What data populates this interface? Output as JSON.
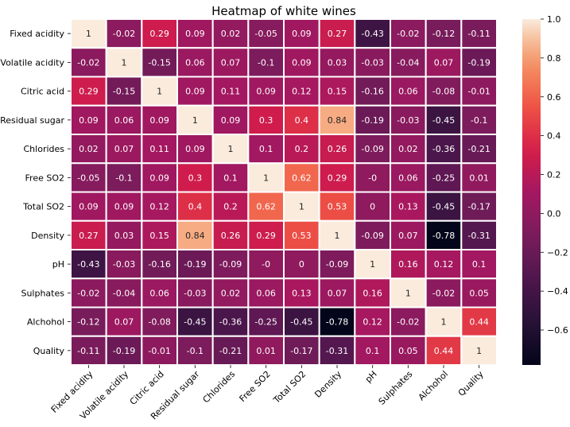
{
  "chart_data": {
    "type": "heatmap",
    "title": "Heatmap of white wines",
    "xlabel": "",
    "ylabel": "",
    "rows": [
      "Fixed acidity",
      "Volatile acidity",
      "Citric acid",
      "Residual sugar",
      "Chlorides",
      "Free SO2",
      "Total SO2",
      "Density",
      "pH",
      "Sulphates",
      "Alchohol",
      "Quality"
    ],
    "columns": [
      "Fixed acidity",
      "Volatile acidity",
      "Citric acid",
      "Residual sugar",
      "Chlorides",
      "Free SO2",
      "Total SO2",
      "Density",
      "pH",
      "Sulphates",
      "Alchohol",
      "Quality"
    ],
    "cell_labels": [
      [
        "1",
        "-0.02",
        "0.29",
        "0.09",
        "0.02",
        "-0.05",
        "0.09",
        "0.27",
        "-0.43",
        "-0.02",
        "-0.12",
        "-0.11"
      ],
      [
        "-0.02",
        "1",
        "-0.15",
        "0.06",
        "0.07",
        "-0.1",
        "0.09",
        "0.03",
        "-0.03",
        "-0.04",
        "0.07",
        "-0.19"
      ],
      [
        "0.29",
        "-0.15",
        "1",
        "0.09",
        "0.11",
        "0.09",
        "0.12",
        "0.15",
        "-0.16",
        "0.06",
        "-0.08",
        "-0.01"
      ],
      [
        "0.09",
        "0.06",
        "0.09",
        "1",
        "0.09",
        "0.3",
        "0.4",
        "0.84",
        "-0.19",
        "-0.03",
        "-0.45",
        "-0.1"
      ],
      [
        "0.02",
        "0.07",
        "0.11",
        "0.09",
        "1",
        "0.1",
        "0.2",
        "0.26",
        "-0.09",
        "0.02",
        "-0.36",
        "-0.21"
      ],
      [
        "-0.05",
        "-0.1",
        "0.09",
        "0.3",
        "0.1",
        "1",
        "0.62",
        "0.29",
        "-0",
        "0.06",
        "-0.25",
        "0.01"
      ],
      [
        "0.09",
        "0.09",
        "0.12",
        "0.4",
        "0.2",
        "0.62",
        "1",
        "0.53",
        "0",
        "0.13",
        "-0.45",
        "-0.17"
      ],
      [
        "0.27",
        "0.03",
        "0.15",
        "0.84",
        "0.26",
        "0.29",
        "0.53",
        "1",
        "-0.09",
        "0.07",
        "-0.78",
        "-0.31"
      ],
      [
        "-0.43",
        "-0.03",
        "-0.16",
        "-0.19",
        "-0.09",
        "-0",
        "0",
        "-0.09",
        "1",
        "0.16",
        "0.12",
        "0.1"
      ],
      [
        "-0.02",
        "-0.04",
        "0.06",
        "-0.03",
        "0.02",
        "0.06",
        "0.13",
        "0.07",
        "0.16",
        "1",
        "-0.02",
        "0.05"
      ],
      [
        "-0.12",
        "0.07",
        "-0.08",
        "-0.45",
        "-0.36",
        "-0.25",
        "-0.45",
        "-0.78",
        "0.12",
        "-0.02",
        "1",
        "0.44"
      ],
      [
        "-0.11",
        "-0.19",
        "-0.01",
        "-0.1",
        "-0.21",
        "0.01",
        "-0.17",
        "-0.31",
        "0.1",
        "0.05",
        "0.44",
        "1"
      ]
    ],
    "colorbar": {
      "min": -0.78,
      "max": 1.0,
      "ticks": [
        -0.6,
        -0.4,
        -0.2,
        0.0,
        0.2,
        0.4,
        0.6,
        0.8,
        1.0
      ],
      "tick_labels": [
        "−0.6",
        "−0.4",
        "−0.2",
        "0.0",
        "0.2",
        "0.4",
        "0.6",
        "0.8",
        "1.0"
      ]
    },
    "colormap": "rocket",
    "grid": "white cell borders",
    "legend": "colorbar right"
  }
}
